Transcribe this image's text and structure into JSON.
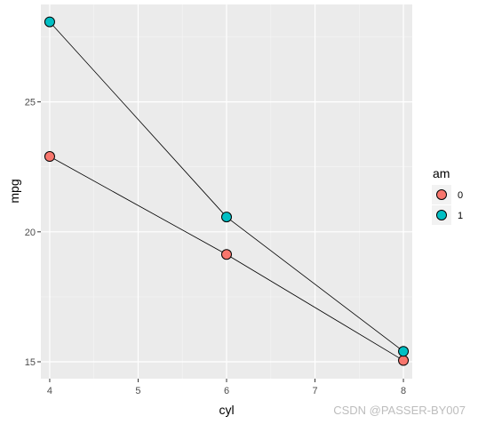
{
  "chart_data": {
    "type": "line",
    "xlabel": "cyl",
    "ylabel": "mpg",
    "xlim": [
      3.9,
      8.1
    ],
    "ylim": [
      14.35,
      28.75
    ],
    "x_ticks": [
      4,
      5,
      6,
      7,
      8
    ],
    "y_ticks": [
      15,
      20,
      25
    ],
    "grid": true,
    "legend": {
      "title": "am",
      "position": "right",
      "entries": [
        "0",
        "1"
      ]
    },
    "series": [
      {
        "name": "0",
        "color": "#F8766D",
        "x": [
          4,
          6,
          8
        ],
        "y": [
          22.9,
          19.13,
          15.05
        ]
      },
      {
        "name": "1",
        "color": "#00BFC4",
        "x": [
          4,
          6,
          8
        ],
        "y": [
          28.08,
          20.57,
          15.4
        ]
      }
    ]
  },
  "watermark": "CSDN @PASSER-BY007"
}
